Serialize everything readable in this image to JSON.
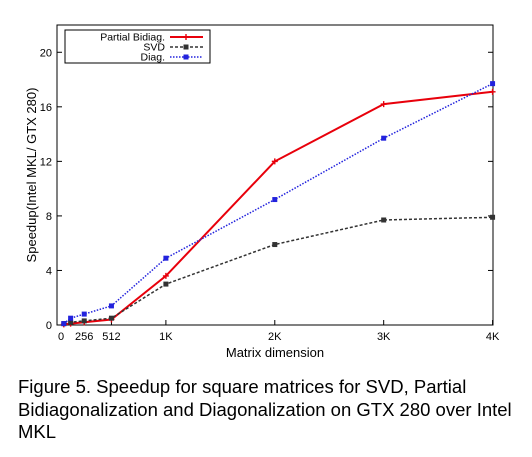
{
  "chart_data": {
    "type": "line",
    "xlabel": "Matrix dimension",
    "ylabel": "Speedup(Intel MKL/ GTX 280)",
    "xlim": [
      0,
      4100
    ],
    "ylim": [
      0,
      22
    ],
    "x_ticks": [
      {
        "value": 256,
        "label": "256"
      },
      {
        "value": 512,
        "label": "512"
      },
      {
        "value": 1024,
        "label": "1K"
      },
      {
        "value": 2048,
        "label": "2K"
      },
      {
        "value": 3072,
        "label": "3K"
      },
      {
        "value": 4096,
        "label": "4K"
      }
    ],
    "y_ticks": [
      0,
      4,
      8,
      12,
      16,
      20
    ],
    "grid": false,
    "legend_position": "top-left",
    "series": [
      {
        "name": "Partial Bidiag.",
        "color": "#e8000b",
        "style": "solid",
        "marker": "plus",
        "x": [
          64,
          128,
          256,
          512,
          1024,
          2048,
          3072,
          4096
        ],
        "y": [
          0.05,
          0.1,
          0.2,
          0.4,
          3.6,
          12.0,
          16.2,
          17.1
        ]
      },
      {
        "name": "SVD",
        "color": "#333333",
        "style": "dashed",
        "marker": "square",
        "x": [
          64,
          128,
          256,
          512,
          1024,
          2048,
          3072,
          4096
        ],
        "y": [
          0.1,
          0.2,
          0.3,
          0.5,
          3.0,
          5.9,
          7.7,
          7.9
        ]
      },
      {
        "name": "Diag.",
        "color": "#2222dd",
        "style": "dotted",
        "marker": "square",
        "x": [
          64,
          128,
          256,
          512,
          1024,
          2048,
          3072,
          4096
        ],
        "y": [
          0.1,
          0.5,
          0.8,
          1.4,
          4.9,
          9.2,
          13.7,
          17.7
        ]
      }
    ]
  },
  "caption": "Figure 5.  Speedup for square matrices for SVD, Partial Bidiagonalization and Diagonalization on GTX 280 over Intel MKL"
}
